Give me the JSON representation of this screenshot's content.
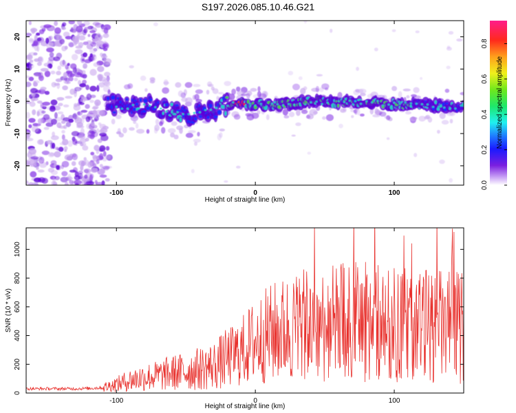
{
  "title": "S197.2026.085.10.46.G21",
  "colors": {
    "signal_line": "#e8302c",
    "grain_light": "#c9a8ef",
    "grain_mid": "#8a3de6",
    "grain_dark": "#5b00d6",
    "ridge_low": "#1a2cff",
    "ridge_mid": "#21d6c8",
    "ridge_high": "#4cd24a",
    "ridge_peak": "#ff2a1a"
  },
  "chart_data": [
    {
      "type": "heatmap",
      "name": "spectrogram",
      "title": "",
      "xlabel": "Height of straight line (km)",
      "ylabel": "Frequency (Hz)",
      "xlim": [
        -165,
        150
      ],
      "ylim": [
        -26,
        25
      ],
      "xticks": [
        -100,
        0,
        100
      ],
      "yticks": [
        -20,
        -10,
        0,
        10,
        20
      ],
      "ridge": {
        "description_points_x": [
          -105,
          -90,
          -75,
          -60,
          -45,
          -30,
          -20,
          -10,
          0,
          20,
          40,
          60,
          80,
          100,
          120,
          150
        ],
        "frequency_hz": [
          -1,
          -2,
          -1,
          -3,
          -4,
          -3,
          -1,
          0,
          -1,
          -1,
          0,
          -0.5,
          0,
          -1,
          -1,
          -2
        ],
        "normalized_amplitude": [
          0.2,
          0.25,
          0.2,
          0.3,
          0.2,
          0.25,
          0.45,
          0.8,
          0.4,
          0.5,
          0.45,
          0.45,
          0.5,
          0.5,
          0.3,
          0.3
        ]
      },
      "colorbar": {
        "label": "Normalized spectral amplitude",
        "range": [
          0,
          0.93
        ],
        "ticks": [
          0.0,
          0.2,
          0.4,
          0.6,
          0.8
        ]
      }
    },
    {
      "type": "line",
      "name": "snr",
      "title": "",
      "xlabel": "Height of straight line (km)",
      "ylabel": "SNR (10 * v/v)",
      "xlim": [
        -165,
        150
      ],
      "ylim": [
        0,
        1150
      ],
      "xticks": [
        -100,
        0,
        100
      ],
      "yticks": [
        0,
        200,
        400,
        600,
        800,
        1000
      ],
      "series": [
        {
          "name": "SNR",
          "x": [
            -165,
            -150,
            -140,
            -130,
            -120,
            -110,
            -100,
            -90,
            -80,
            -70,
            -60,
            -50,
            -40,
            -30,
            -20,
            -10,
            0,
            10,
            20,
            30,
            40,
            50,
            60,
            70,
            80,
            90,
            100,
            110,
            120,
            130,
            140,
            150
          ],
          "y": [
            30,
            30,
            30,
            30,
            32,
            38,
            60,
            90,
            110,
            120,
            140,
            150,
            170,
            190,
            240,
            290,
            360,
            410,
            440,
            460,
            470,
            480,
            490,
            500,
            500,
            490,
            480,
            480,
            470,
            470,
            460,
            460
          ]
        }
      ]
    }
  ]
}
